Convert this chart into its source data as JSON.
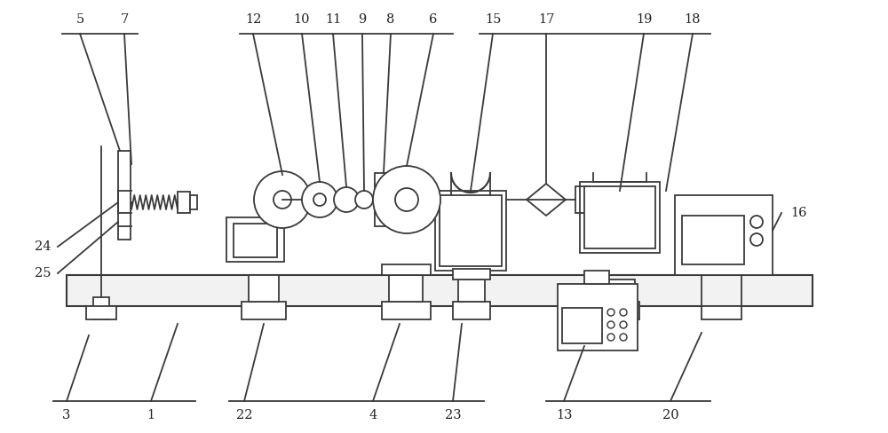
{
  "line_color": "#3a3a3a",
  "lw": 1.3,
  "bg": "#ffffff",
  "label_fs": 10.5,
  "label_color": "#222222"
}
